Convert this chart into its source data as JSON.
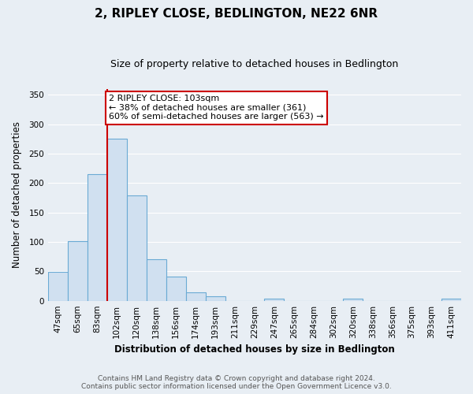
{
  "title": "2, RIPLEY CLOSE, BEDLINGTON, NE22 6NR",
  "subtitle": "Size of property relative to detached houses in Bedlington",
  "xlabel": "Distribution of detached houses by size in Bedlington",
  "ylabel": "Number of detached properties",
  "bar_labels": [
    "47sqm",
    "65sqm",
    "83sqm",
    "102sqm",
    "120sqm",
    "138sqm",
    "156sqm",
    "174sqm",
    "193sqm",
    "211sqm",
    "229sqm",
    "247sqm",
    "265sqm",
    "284sqm",
    "302sqm",
    "320sqm",
    "338sqm",
    "356sqm",
    "375sqm",
    "393sqm",
    "411sqm"
  ],
  "bar_values": [
    49,
    101,
    215,
    275,
    179,
    70,
    41,
    14,
    8,
    0,
    0,
    3,
    0,
    0,
    0,
    4,
    0,
    0,
    0,
    0,
    3
  ],
  "bar_color": "#d0e0f0",
  "bar_edgecolor": "#6aaad4",
  "vline_color": "#cc0000",
  "annotation_text": "2 RIPLEY CLOSE: 103sqm\n← 38% of detached houses are smaller (361)\n60% of semi-detached houses are larger (563) →",
  "annotation_box_edgecolor": "#cc0000",
  "annotation_box_facecolor": "#ffffff",
  "ylim": [
    0,
    360
  ],
  "yticks": [
    0,
    50,
    100,
    150,
    200,
    250,
    300,
    350
  ],
  "footer_line1": "Contains HM Land Registry data © Crown copyright and database right 2024.",
  "footer_line2": "Contains public sector information licensed under the Open Government Licence v3.0.",
  "background_color": "#e8eef4",
  "plot_bg_color": "#e8eef4",
  "grid_color": "#ffffff",
  "title_fontsize": 11,
  "subtitle_fontsize": 9,
  "axis_label_fontsize": 8.5,
  "tick_fontsize": 7.5,
  "footer_fontsize": 6.5,
  "annotation_fontsize": 8
}
